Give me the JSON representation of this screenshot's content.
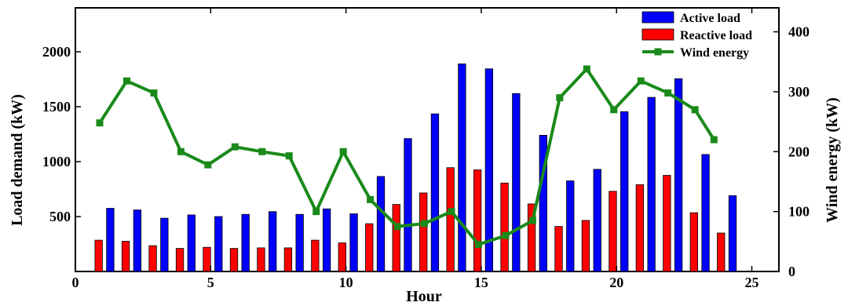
{
  "chart_data": {
    "type": "bar+line",
    "xlabel": "Hour",
    "ylabel_left": "Load demand (kW)",
    "ylabel_right": "Wind energy (kW)",
    "xlim": [
      0,
      26
    ],
    "ylim_left": [
      0,
      2400
    ],
    "ylim_right": [
      0,
      440
    ],
    "x_ticks": [
      "0",
      "5",
      "10",
      "15",
      "20",
      "25"
    ],
    "y_left_ticks": [
      "500",
      "1000",
      "1500",
      "2000"
    ],
    "y_right_ticks": [
      "0",
      "100",
      "200",
      "300",
      "400"
    ],
    "hours": [
      1,
      2,
      3,
      4,
      5,
      6,
      7,
      8,
      9,
      10,
      11,
      12,
      13,
      14,
      15,
      16,
      17,
      18,
      19,
      20,
      21,
      22,
      23,
      24
    ],
    "series": [
      {
        "name": "Active load",
        "kind": "bar",
        "color": "#0000ff",
        "values": [
          575,
          560,
          485,
          515,
          500,
          520,
          545,
          520,
          570,
          525,
          865,
          1210,
          1435,
          1890,
          1845,
          1620,
          1240,
          825,
          930,
          1455,
          1585,
          1755,
          1065,
          690
        ]
      },
      {
        "name": "Reactive load",
        "kind": "bar",
        "color": "#ff0000",
        "values": [
          285,
          275,
          235,
          210,
          220,
          210,
          215,
          215,
          285,
          260,
          435,
          610,
          715,
          945,
          925,
          805,
          615,
          410,
          465,
          730,
          790,
          875,
          535,
          350
        ]
      },
      {
        "name": "Wind energy",
        "kind": "line",
        "axis": "right",
        "color": "#1a8a1a",
        "x": [
          0.9,
          1.9,
          2.9,
          3.9,
          4.9,
          5.9,
          6.9,
          7.9,
          8.9,
          9.9,
          10.9,
          11.9,
          12.9,
          13.9,
          14.9,
          15.9,
          16.9,
          17.9,
          18.9,
          19.9,
          20.9,
          21.9,
          22.9,
          23.6
        ],
        "values": [
          248,
          318,
          298,
          200,
          178,
          208,
          200,
          193,
          100,
          200,
          120,
          75,
          80,
          100,
          45,
          60,
          85,
          290,
          338,
          270,
          318,
          298,
          270,
          220
        ]
      }
    ],
    "legend_position": "top-right"
  }
}
